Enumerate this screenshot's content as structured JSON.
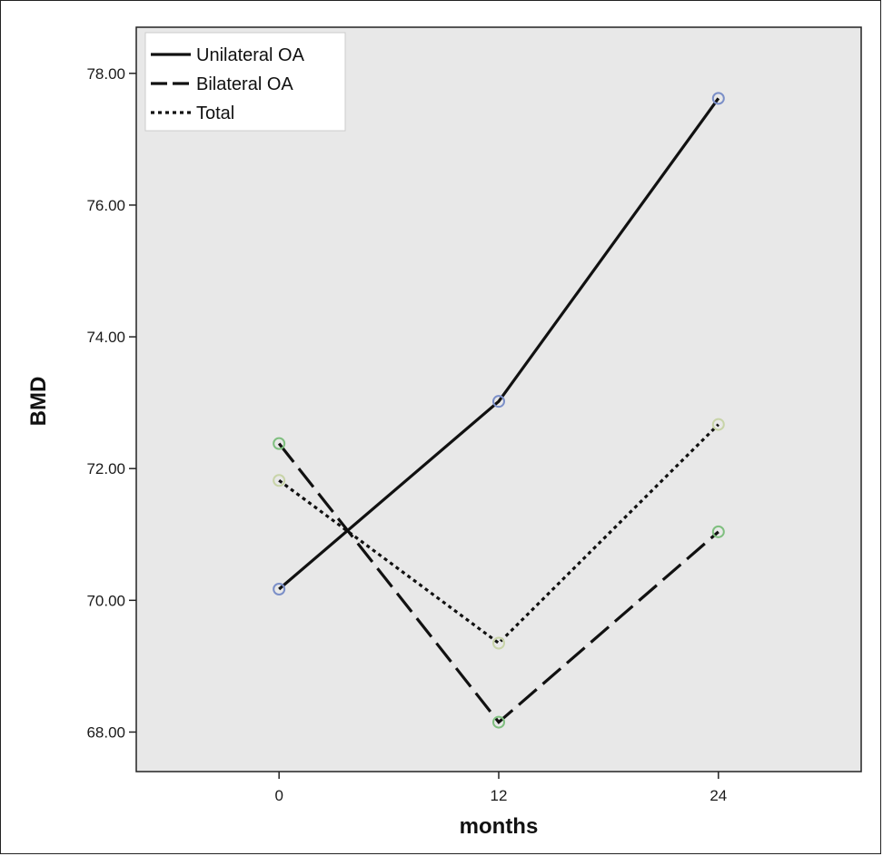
{
  "chart_data": {
    "type": "line",
    "title": "",
    "xlabel": "months",
    "ylabel": "BMD",
    "x": [
      0,
      12,
      24
    ],
    "x_tick_labels": [
      "0",
      "12",
      "24"
    ],
    "y_tick_labels": [
      "68.00",
      "70.00",
      "72.00",
      "74.00",
      "76.00",
      "78.00"
    ],
    "y_ticks": [
      68,
      70,
      72,
      74,
      76,
      78
    ],
    "xlim": [
      -7.8,
      31.8
    ],
    "ylim": [
      67.4,
      78.7
    ],
    "grid": false,
    "legend_position": "top-left",
    "plot_background": "#e8e8e8",
    "series": [
      {
        "name": "Unilateral OA",
        "values": [
          70.17,
          73.02,
          77.62
        ],
        "dash": "solid",
        "marker_color": "#7b8fc8"
      },
      {
        "name": "Bilateral OA",
        "values": [
          72.38,
          68.15,
          71.04
        ],
        "dash": "dashed",
        "marker_color": "#7fbf7f"
      },
      {
        "name": "Total",
        "values": [
          71.82,
          69.35,
          72.67
        ],
        "dash": "dotted",
        "marker_color": "#c8d4a8"
      }
    ]
  }
}
